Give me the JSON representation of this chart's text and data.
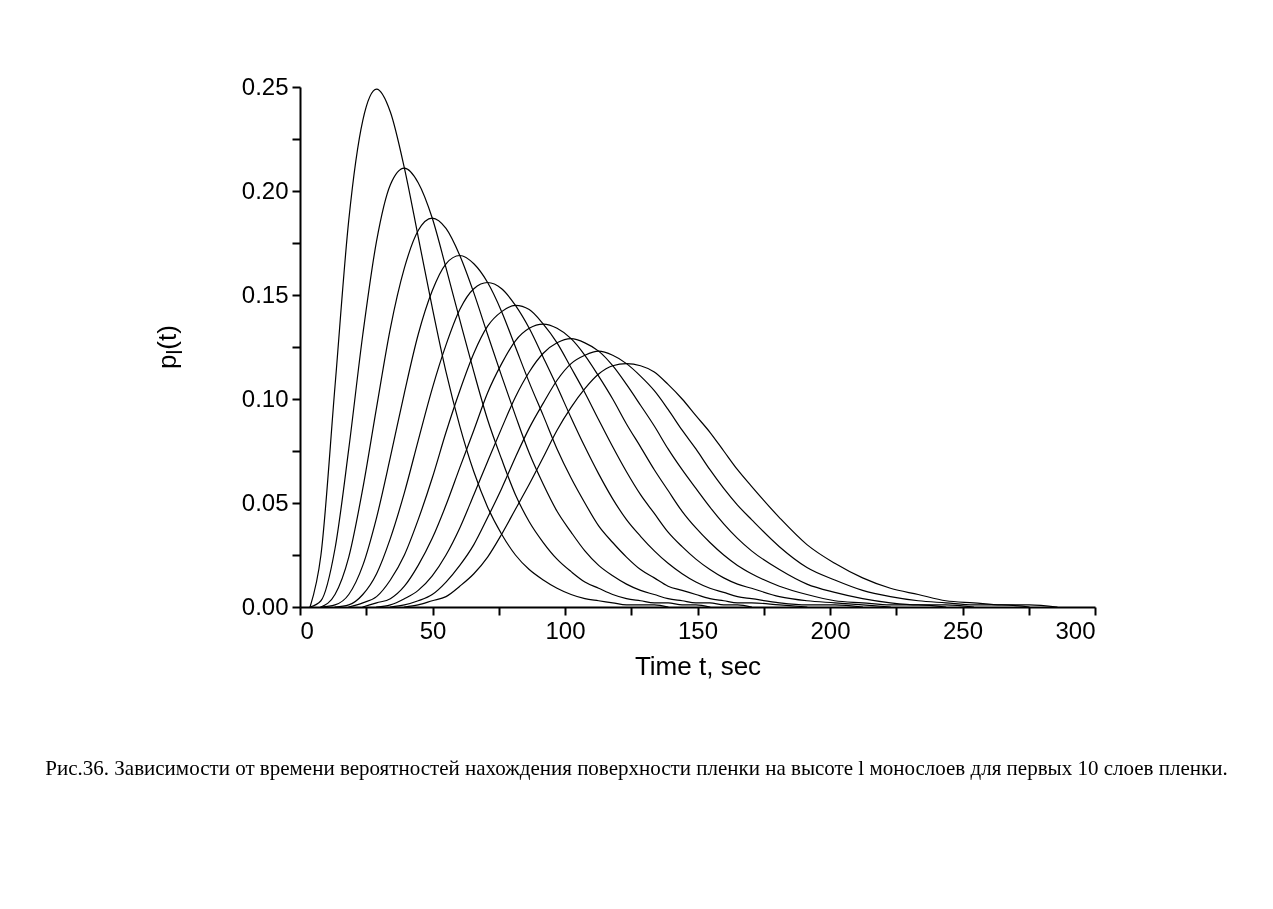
{
  "chart_data": {
    "type": "line",
    "xlabel": "Time t, sec",
    "ylabel": "p$_{l}$(t)",
    "annotations": [
      "Рис.36. Зависимости от времени вероятностей нахождения поверхности пленки на высоте l монослоев для первых 10 слоев пленки."
    ],
    "x": [
      3.8,
      7.9,
      13.2,
      18.4,
      23.7,
      28.9,
      34.1,
      39.4,
      44.6,
      49.9,
      55.1,
      60.3,
      65.6,
      70.8,
      76.1,
      81.3,
      86.5,
      91.8,
      97.0,
      102.3,
      107.5,
      112.7,
      118.0,
      123.2,
      128.5,
      133.7,
      138.9,
      144.2,
      149.4,
      154.7,
      159.9,
      165.1,
      170.4,
      180.9,
      191.3,
      201.8,
      212.3,
      222.8,
      233.3,
      243.7,
      254.2,
      264.7,
      275.2,
      285.7
    ],
    "xlim": [
      0,
      300
    ],
    "xticks": [
      0,
      {
        "value": 25,
        "label": null
      },
      50,
      {
        "value": 75,
        "label": null
      },
      100,
      {
        "value": 125,
        "label": null
      },
      150,
      {
        "value": 175,
        "label": null
      },
      200,
      {
        "value": 225,
        "label": null
      },
      250,
      {
        "value": 275,
        "label": null
      },
      300
    ],
    "ylim": [
      0,
      0.25
    ],
    "yticks": [
      {
        "value": 0,
        "label": "0.00"
      },
      {
        "value": 0.025,
        "label": null
      },
      {
        "value": 0.05,
        "label": "0.05"
      },
      {
        "value": 0.075,
        "label": null
      },
      {
        "value": 0.1,
        "label": "0.10"
      },
      {
        "value": 0.125,
        "label": null
      },
      {
        "value": 0.15,
        "label": "0.15"
      },
      {
        "value": 0.175,
        "label": null
      },
      {
        "value": 0.2,
        "label": "0.20"
      },
      {
        "value": 0.225,
        "label": null
      },
      {
        "value": 0.25,
        "label": "0.25"
      }
    ],
    "series": [
      {
        "color": "#000000",
        "values": [
          0,
          0.025,
          0.106,
          0.186,
          0.234,
          0.249,
          0.238,
          0.211,
          0.178,
          0.144,
          0.113,
          0.087,
          0.065,
          0.048,
          0.035,
          0.025,
          0.018,
          0.013,
          0.009,
          0.006,
          0.004,
          0.003,
          0.002,
          0.001,
          0.001,
          0.001,
          0,
          null,
          null,
          null,
          null,
          null,
          null,
          null,
          null,
          null,
          null,
          null,
          null,
          null,
          null,
          null,
          null,
          null
        ]
      },
      {
        "color": "#000000",
        "values": [
          0,
          0.003,
          0.028,
          0.076,
          0.131,
          0.176,
          0.203,
          0.211,
          0.204,
          0.187,
          0.163,
          0.138,
          0.113,
          0.09,
          0.071,
          0.054,
          0.041,
          0.031,
          0.023,
          0.017,
          0.012,
          0.009,
          0.006,
          0.004,
          0.003,
          0.002,
          0.002,
          0.001,
          0.001,
          0,
          null,
          null,
          null,
          null,
          null,
          null,
          null,
          null,
          null,
          null,
          null,
          null,
          null,
          null
        ]
      },
      {
        "color": "#000000",
        "values": [
          null,
          0,
          0.006,
          0.024,
          0.057,
          0.096,
          0.134,
          0.163,
          0.181,
          0.187,
          0.182,
          0.169,
          0.151,
          0.131,
          0.111,
          0.092,
          0.074,
          0.059,
          0.046,
          0.036,
          0.027,
          0.02,
          0.015,
          0.011,
          0.008,
          0.006,
          0.004,
          0.003,
          0.002,
          0.002,
          0.001,
          0.001,
          0,
          null,
          null,
          null,
          null,
          null,
          null,
          null,
          null,
          null,
          null,
          null
        ]
      },
      {
        "color": "#000000",
        "values": [
          null,
          0,
          0.001,
          0.006,
          0.02,
          0.043,
          0.072,
          0.103,
          0.131,
          0.152,
          0.165,
          0.169,
          0.165,
          0.156,
          0.142,
          0.125,
          0.108,
          0.092,
          0.076,
          0.062,
          0.05,
          0.039,
          0.031,
          0.024,
          0.018,
          0.014,
          0.01,
          0.008,
          0.006,
          0.004,
          0.003,
          0.002,
          0.002,
          0.001,
          0,
          null,
          null,
          null,
          null,
          null,
          null,
          null,
          null,
          null
        ]
      },
      {
        "color": "#000000",
        "values": [
          null,
          null,
          0,
          0.001,
          0.006,
          0.016,
          0.033,
          0.055,
          0.08,
          0.105,
          0.126,
          0.143,
          0.153,
          0.156,
          0.153,
          0.145,
          0.134,
          0.12,
          0.106,
          0.091,
          0.077,
          0.064,
          0.052,
          0.042,
          0.034,
          0.027,
          0.021,
          0.016,
          0.012,
          0.009,
          0.007,
          0.005,
          0.004,
          0.002,
          0.001,
          0.001,
          0,
          null,
          null,
          null,
          null,
          null,
          null,
          null
        ]
      },
      {
        "color": "#000000",
        "values": [
          null,
          null,
          null,
          0,
          0.002,
          0.005,
          0.013,
          0.025,
          0.042,
          0.062,
          0.084,
          0.104,
          0.122,
          0.135,
          0.142,
          0.145,
          0.143,
          0.136,
          0.127,
          0.115,
          0.103,
          0.09,
          0.077,
          0.065,
          0.054,
          0.045,
          0.036,
          0.029,
          0.023,
          0.018,
          0.014,
          0.011,
          0.009,
          0.005,
          0.003,
          0.002,
          0.001,
          0,
          null,
          null,
          null,
          null,
          null,
          null
        ]
      },
      {
        "color": "#000000",
        "values": [
          null,
          null,
          null,
          null,
          0,
          0.002,
          0.004,
          0.01,
          0.02,
          0.033,
          0.049,
          0.067,
          0.085,
          0.103,
          0.117,
          0.128,
          0.134,
          0.136,
          0.134,
          0.129,
          0.121,
          0.111,
          0.1,
          0.088,
          0.077,
          0.066,
          0.056,
          0.046,
          0.038,
          0.031,
          0.025,
          0.02,
          0.016,
          0.01,
          0.006,
          0.003,
          0.002,
          0.001,
          0.001,
          0,
          null,
          null,
          null,
          null
        ]
      },
      {
        "color": "#000000",
        "values": [
          null,
          null,
          null,
          null,
          null,
          0,
          0.001,
          0.004,
          0.008,
          0.015,
          0.025,
          0.038,
          0.054,
          0.07,
          0.086,
          0.101,
          0.113,
          0.122,
          0.127,
          0.129,
          0.127,
          0.123,
          0.116,
          0.107,
          0.097,
          0.087,
          0.076,
          0.066,
          0.057,
          0.048,
          0.04,
          0.033,
          0.027,
          0.018,
          0.011,
          0.007,
          0.004,
          0.002,
          0.001,
          0.001,
          0,
          null,
          null,
          null
        ]
      },
      {
        "color": "#000000",
        "values": [
          null,
          null,
          null,
          null,
          null,
          null,
          0,
          0.001,
          0.003,
          0.006,
          0.012,
          0.02,
          0.03,
          0.043,
          0.057,
          0.072,
          0.086,
          0.098,
          0.109,
          0.117,
          0.121,
          0.123,
          0.121,
          0.117,
          0.111,
          0.104,
          0.095,
          0.085,
          0.076,
          0.066,
          0.057,
          0.049,
          0.042,
          0.029,
          0.019,
          0.013,
          0.008,
          0.005,
          0.003,
          0.002,
          0.001,
          0.001,
          0,
          null
        ]
      },
      {
        "color": "#000000",
        "values": [
          null,
          null,
          null,
          null,
          null,
          null,
          null,
          0,
          0.001,
          0.003,
          0.005,
          0.01,
          0.016,
          0.024,
          0.035,
          0.047,
          0.059,
          0.072,
          0.085,
          0.096,
          0.105,
          0.112,
          0.116,
          0.117,
          0.116,
          0.113,
          0.107,
          0.1,
          0.092,
          0.084,
          0.075,
          0.066,
          0.058,
          0.043,
          0.03,
          0.021,
          0.014,
          0.009,
          0.006,
          0.003,
          0.002,
          0.001,
          0.001,
          0
        ]
      }
    ]
  }
}
